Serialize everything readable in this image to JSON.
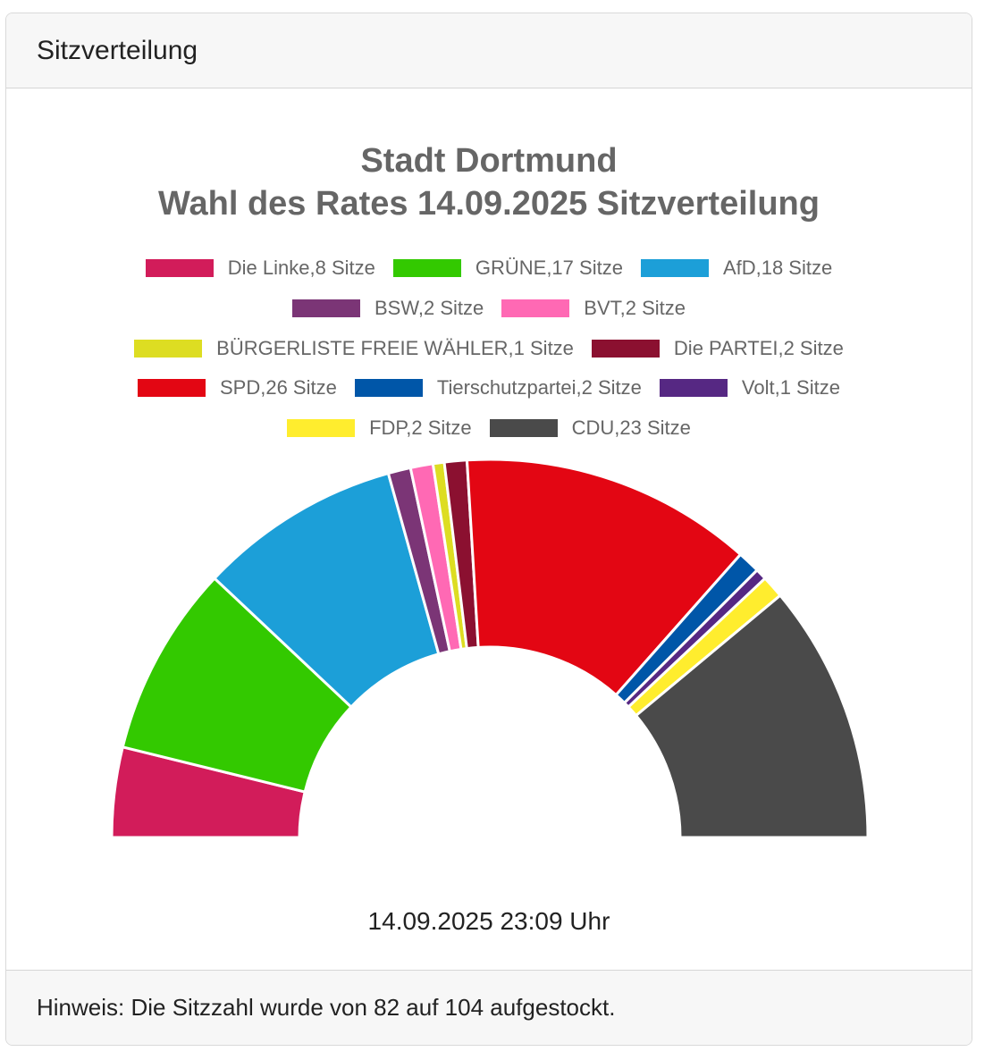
{
  "card": {
    "header": "Sitzverteilung",
    "footer": "Hinweis: Die Sitzzahl wurde von 82 auf 104 aufgestockt."
  },
  "chart_data": {
    "type": "pie",
    "variant": "semicircle",
    "title_line1": "Stadt Dortmund",
    "title_line2": "Wahl des Rates 14.09.2025 Sitzverteilung",
    "series": [
      {
        "name": "Die Linke",
        "seats": 8,
        "color": "#d21c5a"
      },
      {
        "name": "GRÜNE",
        "seats": 17,
        "color": "#33c900"
      },
      {
        "name": "AfD",
        "seats": 18,
        "color": "#1c9fd8"
      },
      {
        "name": "BSW",
        "seats": 2,
        "color": "#7b3576"
      },
      {
        "name": "BVT",
        "seats": 2,
        "color": "#ff69b4"
      },
      {
        "name": "BÜRGERLISTE FREIE WÄHLER",
        "seats": 1,
        "color": "#dddd22"
      },
      {
        "name": "Die PARTEI",
        "seats": 2,
        "color": "#8b1030"
      },
      {
        "name": "SPD",
        "seats": 26,
        "color": "#e30613"
      },
      {
        "name": "Tierschutzpartei",
        "seats": 2,
        "color": "#0056a8"
      },
      {
        "name": "Volt",
        "seats": 1,
        "color": "#562883"
      },
      {
        "name": "FDP",
        "seats": 2,
        "color": "#ffed2e"
      },
      {
        "name": "CDU",
        "seats": 23,
        "color": "#4a4a4a"
      }
    ],
    "legend_labels": [
      "Die Linke,8 Sitze",
      "GRÜNE,17 Sitze",
      "AfD,18 Sitze",
      "BSW,2 Sitze",
      "BVT,2 Sitze",
      "BÜRGERLISTE FREIE WÄHLER,1 Sitze",
      "Die PARTEI,2 Sitze",
      "SPD,26 Sitze",
      "Tierschutzpartei,2 Sitze",
      "Volt,1 Sitze",
      "FDP,2 Sitze",
      "CDU,23 Sitze"
    ],
    "total_seats": 104,
    "timestamp": "14.09.2025 23:09 Uhr"
  }
}
